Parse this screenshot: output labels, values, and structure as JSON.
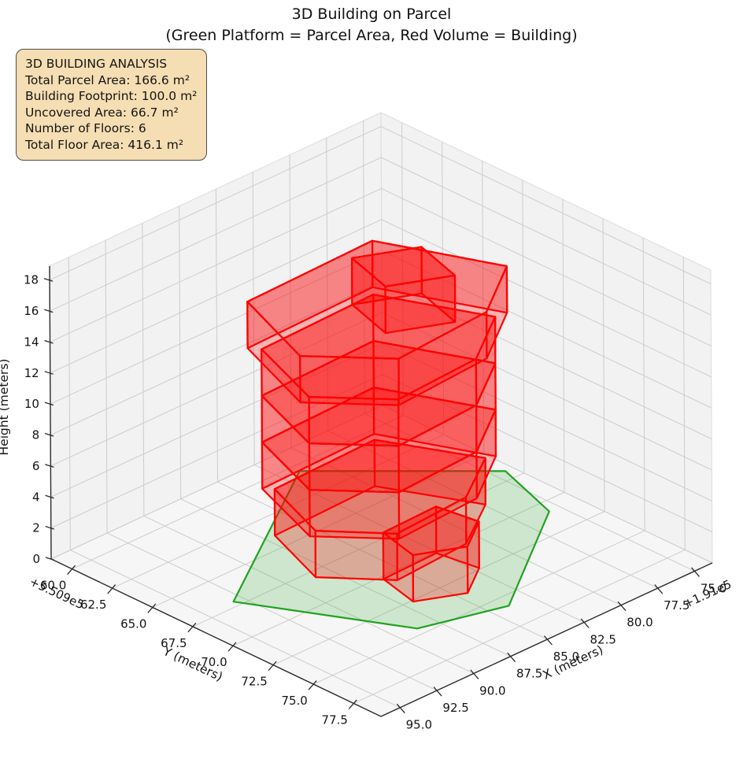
{
  "title": {
    "line1": "3D Building on Parcel",
    "line2": "(Green Platform = Parcel Area, Red Volume = Building)"
  },
  "info_box": {
    "heading": "3D BUILDING ANALYSIS",
    "lines": [
      "Total Parcel Area: 166.6 m²",
      "Building Footprint: 100.0 m²",
      "Uncovered Area: 66.7 m²",
      "Number of Floors: 6",
      "Total Floor Area: 416.1 m²"
    ],
    "background_color": "#f5deb3",
    "border_color": "#4d4d4d"
  },
  "chart_data": {
    "type": "3d-building-plot",
    "title": "3D Building on Parcel (Green Platform = Parcel Area, Red Volume = Building)",
    "stats": {
      "total_parcel_area_m2": 166.6,
      "building_footprint_m2": 100.0,
      "uncovered_area_m2": 66.7,
      "number_of_floors": 6,
      "total_floor_area_m2": 416.1
    },
    "axes": {
      "x": {
        "label": "X (meters)",
        "offset_text": "+1.91e5",
        "range": [
          73.8,
          96.3
        ],
        "ticks": [
          75,
          77.5,
          80,
          82.5,
          85,
          87.5,
          90,
          92.5,
          95
        ],
        "tick_labels": [
          "75.0",
          "77.5",
          "80.0",
          "82.5",
          "85.0",
          "87.5",
          "90.0",
          "92.5",
          "95.0"
        ]
      },
      "y": {
        "label": "Y (meters)",
        "offset_text": "+5.509e5",
        "range": [
          58.7,
          79.2
        ],
        "ticks": [
          60,
          62.5,
          65,
          67.5,
          70,
          72.5,
          75,
          77.5
        ],
        "tick_labels": [
          "60.0",
          "62.5",
          "65.0",
          "67.5",
          "70.0",
          "72.5",
          "75.0",
          "77.5"
        ]
      },
      "z": {
        "label": "Height (meters)",
        "range": [
          0,
          18.9
        ],
        "ticks": [
          0,
          2,
          4,
          6,
          8,
          10,
          12,
          14,
          16,
          18
        ],
        "tick_labels": [
          "0",
          "2",
          "4",
          "6",
          "8",
          "10",
          "12",
          "14",
          "16",
          "18"
        ]
      },
      "grid": true
    },
    "parcel": {
      "edge_color": "#1fa31f",
      "fill_color": "rgba(60,175,60,0.22)",
      "z": 0,
      "polygon": [
        [
          93.1,
          67.1
        ],
        [
          88.7,
          74.5
        ],
        [
          83.9,
          75.8
        ],
        [
          75.7,
          70.8
        ],
        [
          74.3,
          66.8
        ],
        [
          81.4,
          60.5
        ]
      ]
    },
    "building": {
      "edge_color": "#ff0000",
      "fill_color": "rgba(255,0,0,0.26)",
      "floor_height_m": 3,
      "floors": [
        {
          "name": "floor-1",
          "z0": 0,
          "z1": 3,
          "polygon": [
            [
              86.9,
              64.0
            ],
            [
              88.5,
              68.0
            ],
            [
              85.9,
              70.7
            ],
            [
              80.9,
              70.4
            ],
            [
              77.4,
              68.4
            ],
            [
              79.9,
              63.8
            ]
          ]
        },
        {
          "name": "floor-1-front-annex",
          "z0": 0,
          "z1": 3,
          "polygon": [
            [
              86.3,
              70.2
            ],
            [
              86.9,
              72.6
            ],
            [
              84.4,
              73.7
            ],
            [
              82.2,
              72.4
            ],
            [
              82.6,
              70.1
            ]
          ]
        },
        {
          "name": "floor-2",
          "z0": 3,
          "z1": 6,
          "polygon": [
            [
              87.3,
              63.6
            ],
            [
              89.1,
              68.2
            ],
            [
              86.2,
              71.1
            ],
            [
              80.6,
              70.8
            ],
            [
              76.9,
              68.6
            ],
            [
              79.5,
              63.4
            ]
          ]
        },
        {
          "name": "floor-3",
          "z0": 6,
          "z1": 9,
          "polygon": [
            [
              87.3,
              63.6
            ],
            [
              89.1,
              68.2
            ],
            [
              86.2,
              71.1
            ],
            [
              80.6,
              70.8
            ],
            [
              76.9,
              68.6
            ],
            [
              79.5,
              63.4
            ]
          ]
        },
        {
          "name": "floor-4",
          "z0": 9,
          "z1": 12,
          "polygon": [
            [
              87.3,
              63.6
            ],
            [
              89.1,
              68.2
            ],
            [
              86.2,
              71.1
            ],
            [
              80.6,
              70.8
            ],
            [
              76.9,
              68.6
            ],
            [
              79.5,
              63.4
            ]
          ]
        },
        {
          "name": "floor-5",
          "z0": 12,
          "z1": 15,
          "polygon": [
            [
              87.7,
              63.1
            ],
            [
              89.8,
              68.3
            ],
            [
              86.6,
              71.5
            ],
            [
              80.2,
              71.1
            ],
            [
              76.2,
              68.7
            ],
            [
              79.0,
              62.9
            ]
          ]
        },
        {
          "name": "floor-6-roof-box",
          "z0": 15,
          "z1": 18,
          "polygon": [
            [
              84.3,
              66.5
            ],
            [
              85.2,
              69.4
            ],
            [
              82.0,
              70.8
            ],
            [
              81.1,
              67.9
            ]
          ]
        }
      ]
    },
    "style": {
      "pane_color": "#f2f2f2",
      "floor_pane_color": "#f6f6f6",
      "grid_color": "#cccccc",
      "spine_color": "#2b2b2b",
      "text_color": "#141414"
    }
  }
}
